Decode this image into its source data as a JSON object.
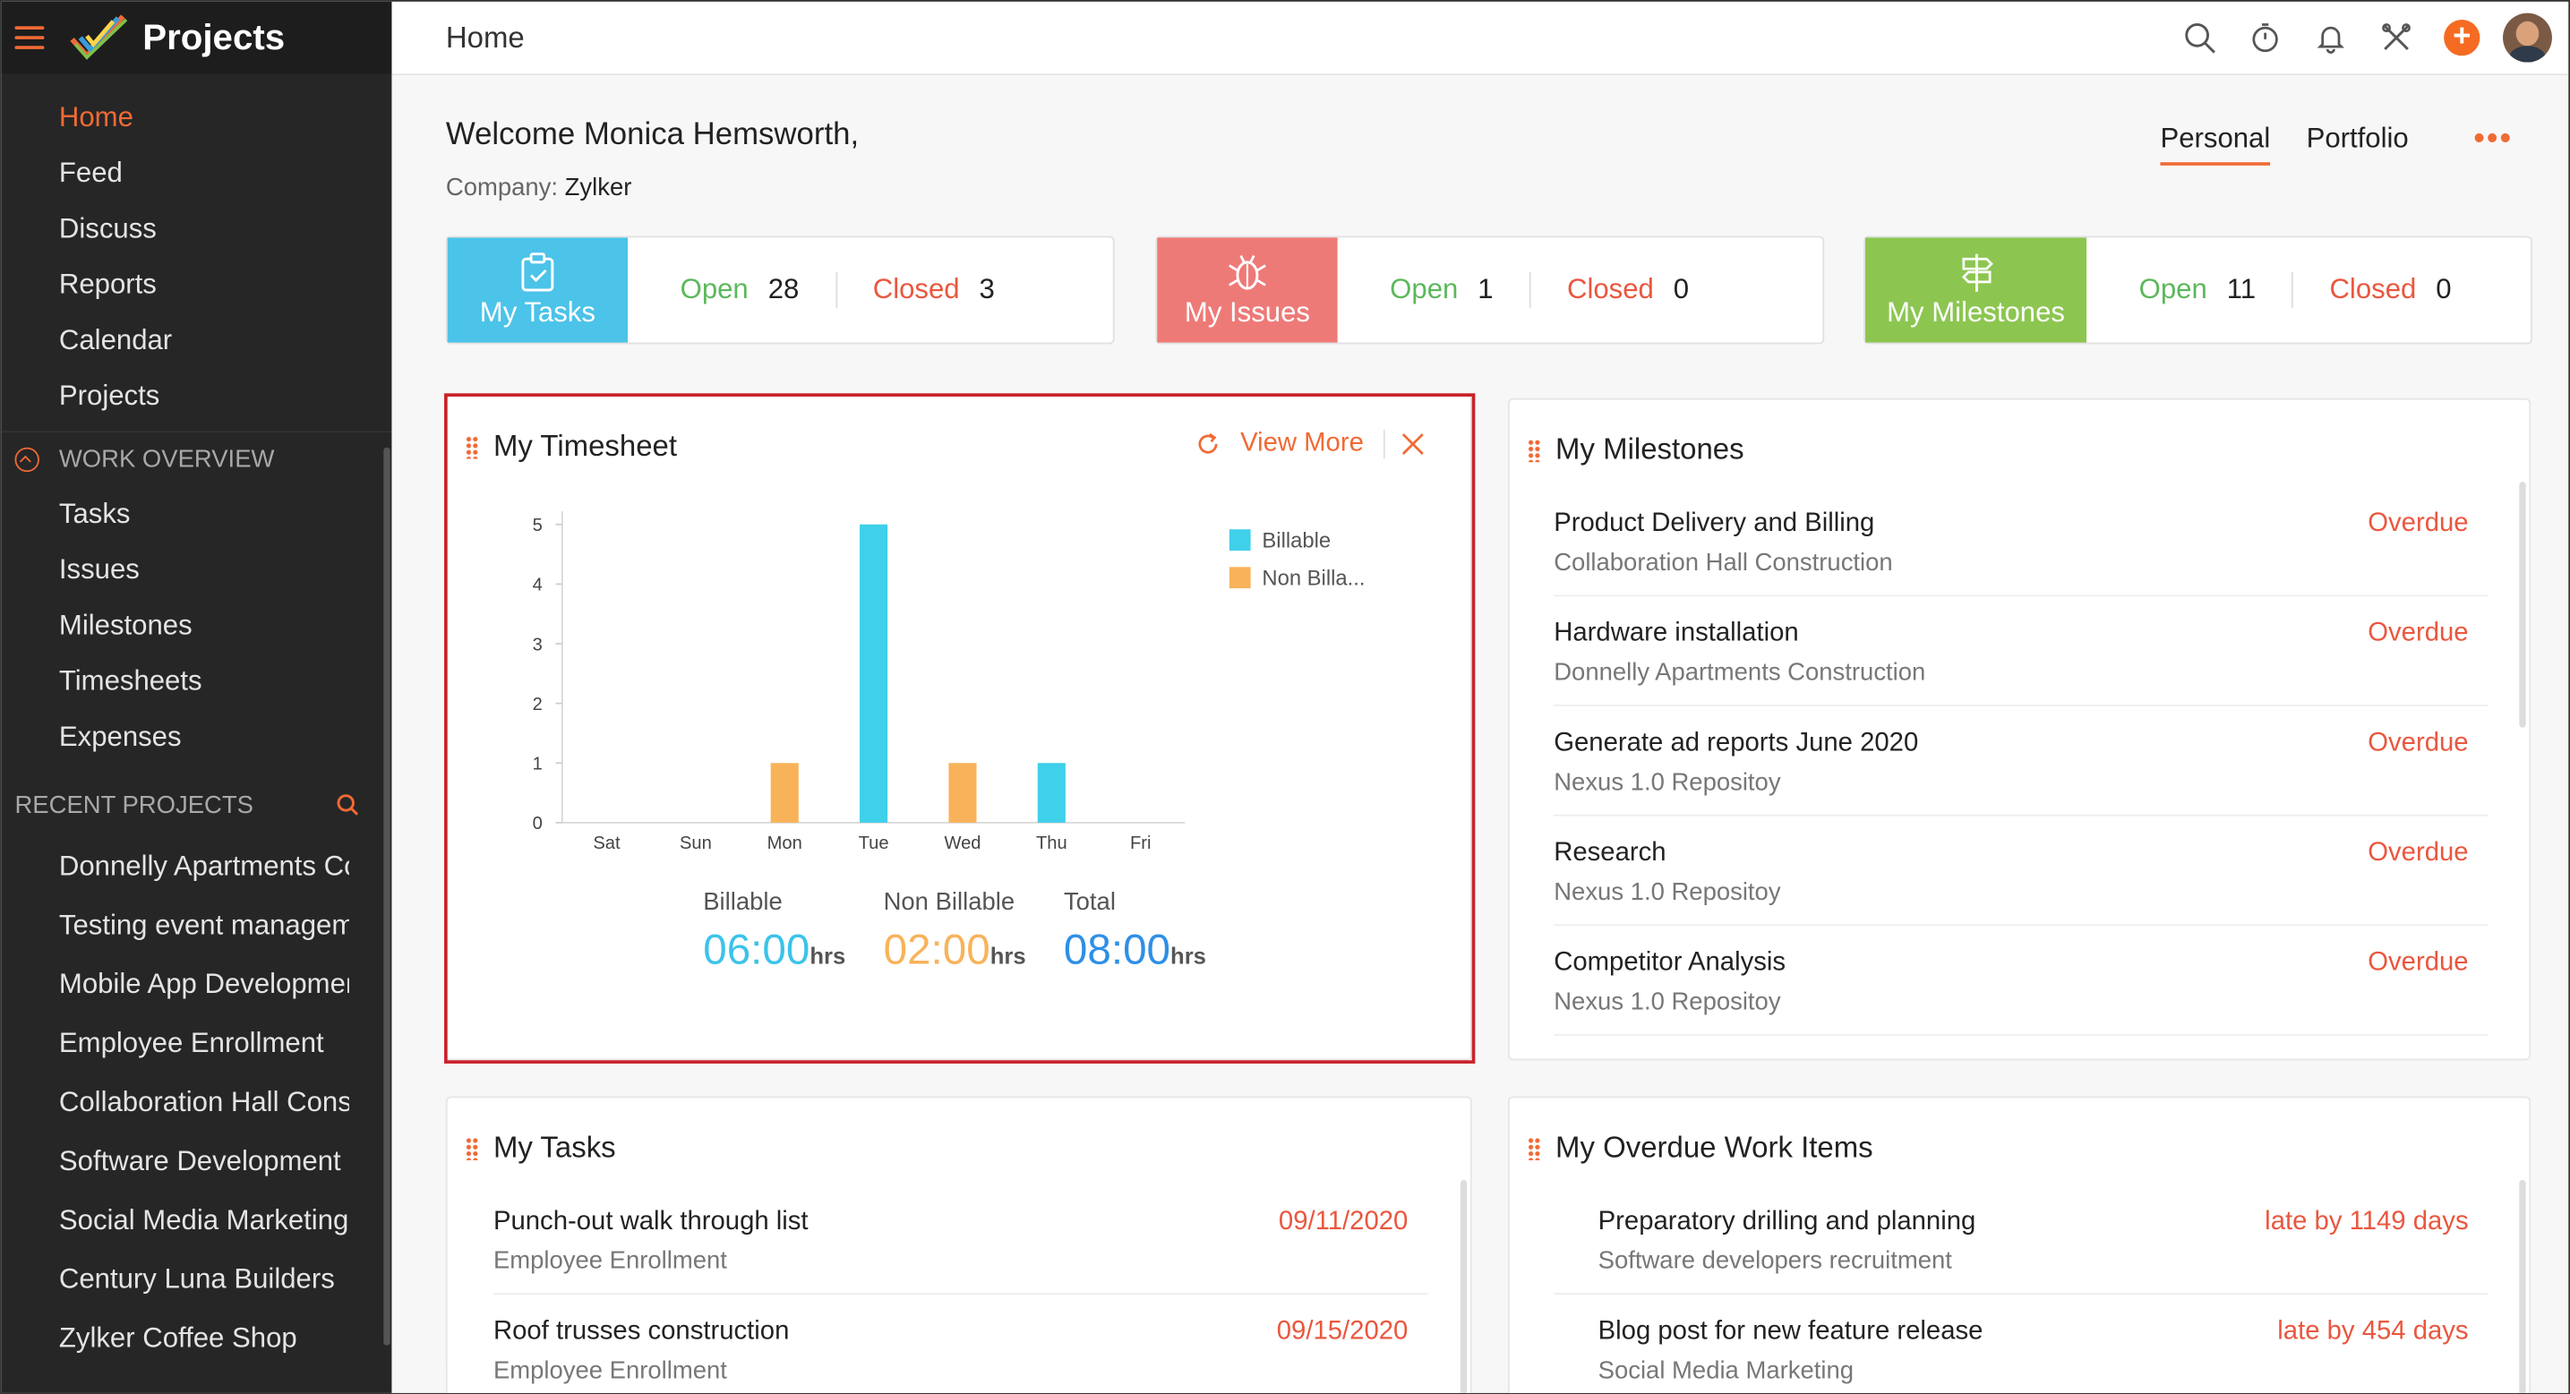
{
  "app": {
    "title": "Projects"
  },
  "nav": [
    {
      "label": "Home",
      "icon": "home-icon",
      "active": true
    },
    {
      "label": "Feed",
      "icon": "feed-icon"
    },
    {
      "label": "Discuss",
      "icon": "discuss-icon"
    },
    {
      "label": "Reports",
      "icon": "reports-icon"
    },
    {
      "label": "Calendar",
      "icon": "calendar-icon"
    },
    {
      "label": "Projects",
      "icon": "projects-icon"
    }
  ],
  "work_overview": {
    "heading": "WORK OVERVIEW",
    "items": [
      "Tasks",
      "Issues",
      "Milestones",
      "Timesheets",
      "Expenses"
    ]
  },
  "recent_projects": {
    "heading": "RECENT PROJECTS",
    "items": [
      {
        "label": "Donnelly Apartments Construction",
        "has_icon": false
      },
      {
        "label": "Testing event management",
        "has_icon": false
      },
      {
        "label": "Mobile App Development",
        "has_icon": true
      },
      {
        "label": "Employee Enrollment",
        "has_icon": false
      },
      {
        "label": "Collaboration Hall Construction",
        "has_icon": false
      },
      {
        "label": "Software Development",
        "has_icon": true
      },
      {
        "label": "Social Media Marketing",
        "has_icon": false
      },
      {
        "label": "Century Luna Builders",
        "has_icon": false
      },
      {
        "label": "Zylker Coffee Shop",
        "has_icon": false
      }
    ]
  },
  "topbar": {
    "title": "Home"
  },
  "welcome": {
    "greeting": "Welcome Monica Hemsworth,",
    "company_label": "Company:",
    "company": "Zylker"
  },
  "view_tabs": [
    "Personal",
    "Portfolio"
  ],
  "stats": [
    {
      "label": "My Tasks",
      "color": "#4cc3e8",
      "open_label": "Open",
      "open": "28",
      "closed_label": "Closed",
      "closed": "3"
    },
    {
      "label": "My Issues",
      "color": "#ee7a78",
      "open_label": "Open",
      "open": "1",
      "closed_label": "Closed",
      "closed": "0"
    },
    {
      "label": "My Milestones",
      "color": "#8cc651",
      "open_label": "Open",
      "open": "11",
      "closed_label": "Closed",
      "closed": "0"
    }
  ],
  "timesheet": {
    "title": "My Timesheet",
    "view_more": "View More",
    "totals": [
      {
        "label": "Billable",
        "value": "06:00",
        "unit": "hrs",
        "color": "#3cc3ea"
      },
      {
        "label": "Non Billable",
        "value": "02:00",
        "unit": "hrs",
        "color": "#f8b35a"
      },
      {
        "label": "Total",
        "value": "08:00",
        "unit": "hrs",
        "color": "#2e8fe6"
      }
    ]
  },
  "chart_data": {
    "type": "bar",
    "categories": [
      "Sat",
      "Sun",
      "Mon",
      "Tue",
      "Wed",
      "Thu",
      "Fri"
    ],
    "series": [
      {
        "name": "Billable",
        "color": "#3fd0ea",
        "values": [
          0,
          0,
          0,
          5,
          0,
          1,
          0
        ]
      },
      {
        "name": "Non Billa...",
        "color": "#f8b35a",
        "values": [
          0,
          0,
          1,
          0,
          1,
          0,
          0
        ]
      }
    ],
    "yticks": [
      "0",
      "1",
      "2",
      "3",
      "4",
      "5"
    ],
    "ylim": [
      0,
      5
    ],
    "legend": "top-right",
    "grid": false
  },
  "milestones": {
    "title": "My Milestones",
    "items": [
      {
        "name": "Product Delivery and Billing",
        "project": "Collaboration Hall Construction",
        "status": "Overdue"
      },
      {
        "name": "Hardware installation",
        "project": "Donnelly Apartments Construction",
        "status": "Overdue"
      },
      {
        "name": "Generate ad reports June 2020",
        "project": "Nexus 1.0 Repositoy",
        "status": "Overdue"
      },
      {
        "name": "Research",
        "project": "Nexus 1.0 Repositoy",
        "status": "Overdue"
      },
      {
        "name": "Competitor Analysis",
        "project": "Nexus 1.0 Repositoy",
        "status": "Overdue"
      }
    ]
  },
  "tasks": {
    "title": "My Tasks",
    "items": [
      {
        "name": "Punch-out walk through list",
        "project": "Employee Enrollment",
        "date": "09/11/2020"
      },
      {
        "name": "Roof trusses construction",
        "project": "Employee Enrollment",
        "date": "09/15/2020"
      }
    ]
  },
  "overdue": {
    "title": "My Overdue Work Items",
    "items": [
      {
        "name": "Preparatory drilling and planning",
        "project": "Software developers recruitment",
        "late": "late by 1149 days"
      },
      {
        "name": "Blog post for new feature release",
        "project": "Social Media Marketing",
        "late": "late by 454 days"
      }
    ]
  },
  "colors": {
    "accent": "#f06a35",
    "sidebar": "#262626",
    "overdue": "#e9573f",
    "open": "#5cb85c"
  }
}
